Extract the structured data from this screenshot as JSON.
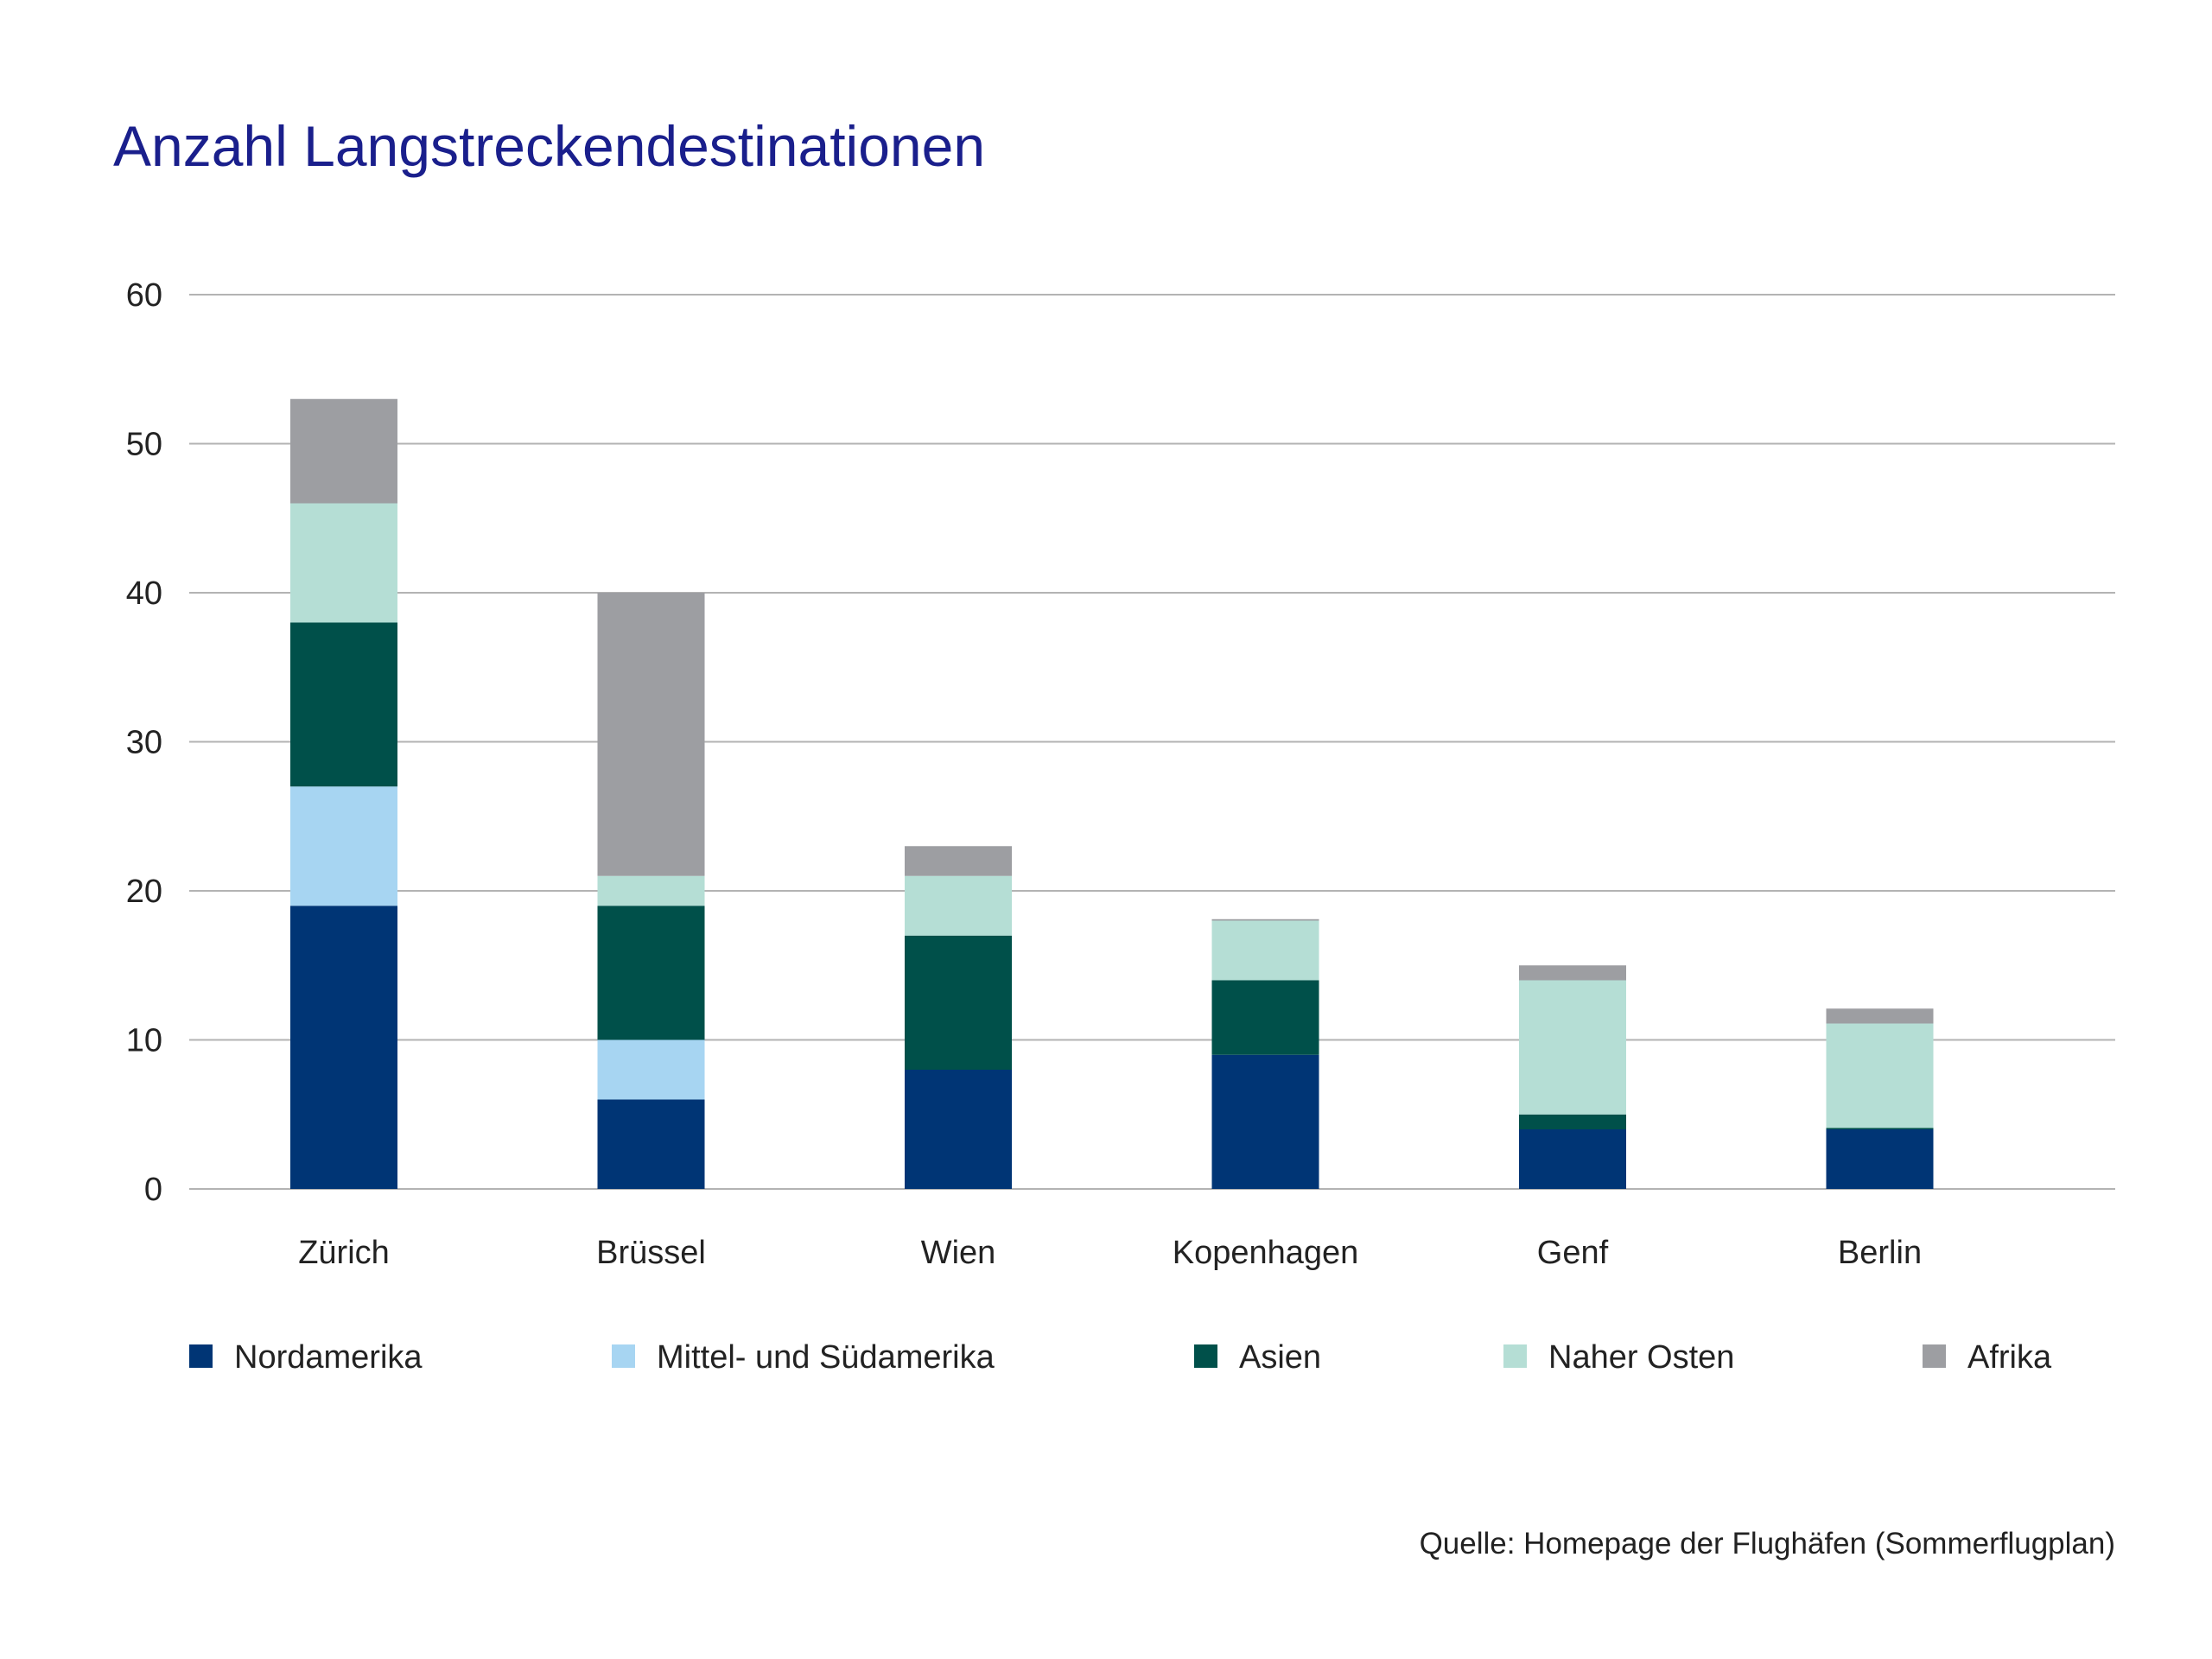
{
  "chart_data": {
    "type": "bar",
    "stacked": true,
    "title": "Anzahl Langstreckendestinationen",
    "xlabel": "",
    "ylabel": "",
    "ylim": [
      0,
      60
    ],
    "yticks": [
      0,
      10,
      20,
      30,
      40,
      50,
      60
    ],
    "grid": true,
    "legend_position": "bottom",
    "categories": [
      "Zürich",
      "Brüssel",
      "Wien",
      "Kopenhagen",
      "Genf",
      "Berlin"
    ],
    "series": [
      {
        "name": "Nordamerika",
        "color": "#003575",
        "values": [
          19,
          6,
          8,
          9,
          4,
          4
        ]
      },
      {
        "name": "Mittel- und Südamerika",
        "color": "#a7d5f2",
        "values": [
          8,
          4,
          0,
          0,
          0,
          0
        ]
      },
      {
        "name": "Asien",
        "color": "#00504a",
        "values": [
          11,
          9,
          9,
          5,
          1,
          0.1
        ]
      },
      {
        "name": "Naher Osten",
        "color": "#b5ded5",
        "values": [
          8,
          2,
          4,
          4,
          9,
          7
        ]
      },
      {
        "name": "Afrika",
        "color": "#9d9ea2",
        "values": [
          7,
          19,
          2,
          0.1,
          1,
          1
        ]
      }
    ],
    "source": "Quelle: Homepage der Flughäfen (Sommerflugplan)"
  }
}
